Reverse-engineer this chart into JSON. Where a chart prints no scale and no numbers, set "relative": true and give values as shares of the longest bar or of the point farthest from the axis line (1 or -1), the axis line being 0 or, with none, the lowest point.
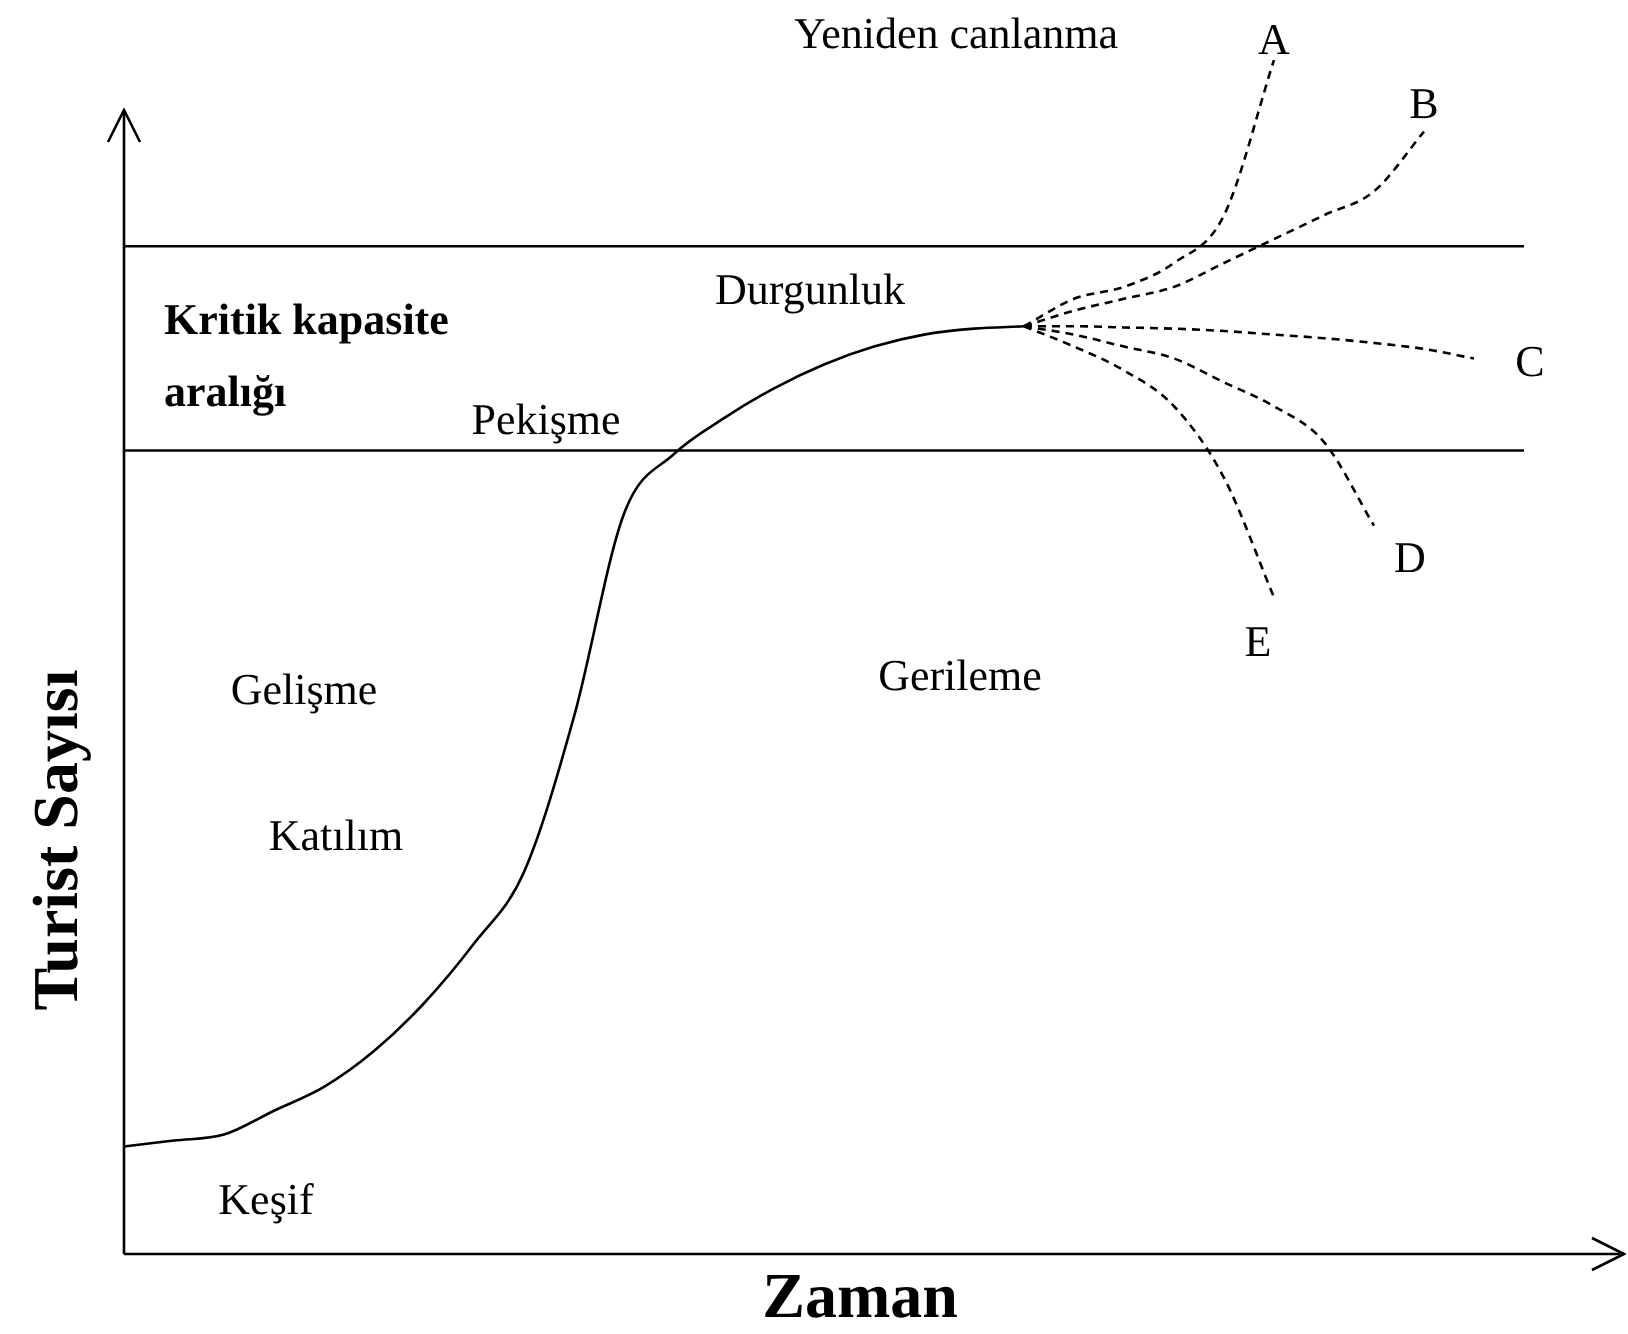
{
  "chart_data": {
    "type": "line",
    "relative": true,
    "xlabel": "Zaman",
    "ylabel": "Turist Sayısı",
    "legend": false,
    "categories": [
      null,
      null,
      null,
      null,
      null,
      null,
      null,
      null,
      null,
      null,
      null,
      null,
      null,
      null,
      null,
      null,
      null,
      null,
      null,
      null,
      null,
      null,
      null,
      null,
      null,
      null,
      null,
      null,
      null,
      null
    ],
    "series": [
      {
        "color": "#000000",
        "line_style": "solid",
        "values": [
          0.09,
          0.095,
          0.1,
          0.12,
          0.14,
          0.17,
          0.21,
          0.26,
          0.32,
          0.45,
          0.62,
          0.67,
          0.7,
          0.725,
          0.745,
          0.76,
          0.77,
          0.775,
          0.777,
          null,
          null,
          null,
          null,
          null,
          null,
          null,
          null,
          null,
          null,
          null
        ]
      },
      {
        "name": "A",
        "color": "#000000",
        "line_style": "dashed",
        "values": [
          null,
          null,
          null,
          null,
          null,
          null,
          null,
          null,
          null,
          null,
          null,
          null,
          null,
          null,
          null,
          null,
          null,
          null,
          0.777,
          0.8,
          0.81,
          0.83,
          0.87,
          1,
          null,
          null,
          null,
          null,
          null,
          null
        ]
      },
      {
        "name": "B",
        "color": "#000000",
        "line_style": "dashed",
        "values": [
          null,
          null,
          null,
          null,
          null,
          null,
          null,
          null,
          null,
          null,
          null,
          null,
          null,
          null,
          null,
          null,
          null,
          null,
          0.777,
          0.79,
          0.8,
          0.81,
          0.83,
          0.85,
          0.87,
          0.89,
          0.94,
          null,
          null,
          null
        ]
      },
      {
        "name": "C",
        "color": "#000000",
        "line_style": "dashed",
        "values": [
          null,
          null,
          null,
          null,
          null,
          null,
          null,
          null,
          null,
          null,
          null,
          null,
          null,
          null,
          null,
          null,
          null,
          null,
          0.777,
          0.777,
          0.776,
          0.775,
          0.773,
          0.77,
          0.767,
          0.763,
          0.758,
          0.75,
          null,
          null
        ]
      },
      {
        "name": "D",
        "color": "#000000",
        "line_style": "dashed",
        "values": [
          null,
          null,
          null,
          null,
          null,
          null,
          null,
          null,
          null,
          null,
          null,
          null,
          null,
          null,
          null,
          null,
          null,
          null,
          0.777,
          0.77,
          0.76,
          0.75,
          0.73,
          0.71,
          0.68,
          0.61,
          null,
          null,
          null,
          null
        ]
      },
      {
        "name": "E",
        "color": "#000000",
        "line_style": "dashed",
        "values": [
          null,
          null,
          null,
          null,
          null,
          null,
          null,
          null,
          null,
          null,
          null,
          null,
          null,
          null,
          null,
          null,
          null,
          null,
          0.777,
          0.76,
          0.74,
          0.71,
          0.65,
          0.55,
          null,
          null,
          null,
          null,
          null,
          null
        ]
      }
    ],
    "ref_lines": [
      {
        "axis": "y",
        "value": 0.844,
        "color": "#000000"
      },
      {
        "axis": "y",
        "value": 0.673,
        "color": "#000000"
      }
    ],
    "annotations": [
      "Keşif",
      "Katılım",
      "Gelişme",
      "Pekişme",
      "Durgunluk",
      "Gerileme",
      "Yeniden canlanma",
      "Kritik kapasite aralığı"
    ]
  }
}
